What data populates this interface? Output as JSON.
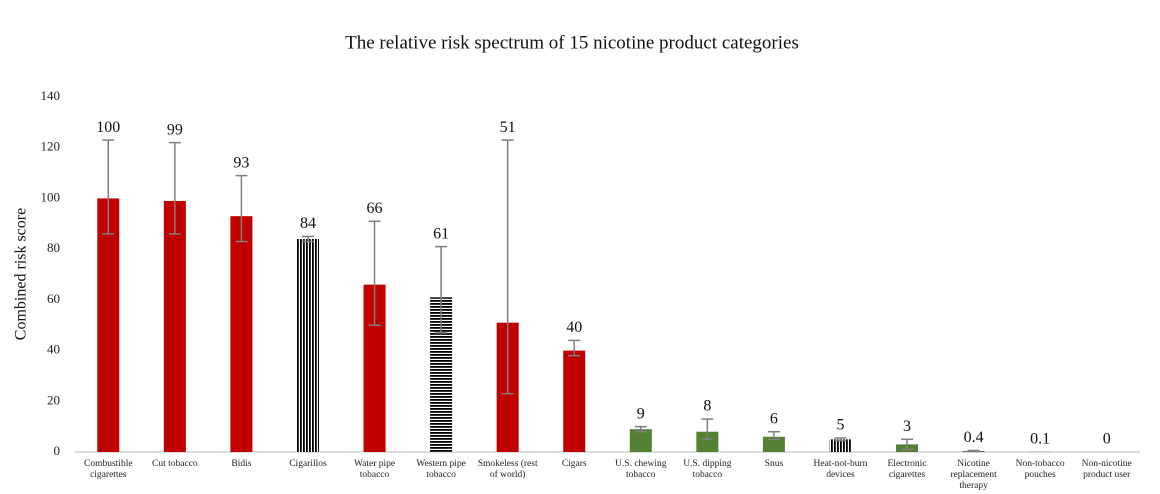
{
  "chart_data": {
    "type": "bar",
    "title": "The relative risk spectrum of 15 nicotine product categories",
    "y_label": "Combined risk score",
    "categories": [
      "Combustible cigarettes",
      "Cut tobacco",
      "Bidis",
      "Cigarillos",
      "Water pipe tobacco",
      "Western pipe tobacco",
      "Smokeless (rest of world)",
      "Cigars",
      "U.S. chewing tobacco",
      "U.S. dipping tobacco",
      "Snus",
      "Heat-not-burn devices",
      "Electronic cigarettes",
      "Nicotine replacement therapy",
      "Non-tobacco pouches",
      "Non-nicotine product user"
    ],
    "values": [
      100,
      99,
      93,
      84,
      66,
      61,
      51,
      40,
      9,
      8,
      6,
      5,
      3,
      0.4,
      0.1,
      0
    ],
    "errors": [
      [
        86,
        123
      ],
      [
        86,
        122
      ],
      [
        83,
        109
      ],
      [
        83,
        85
      ],
      [
        50,
        91
      ],
      [
        47,
        81
      ],
      [
        23,
        123
      ],
      [
        38,
        44
      ],
      [
        8,
        10
      ],
      [
        5,
        13
      ],
      [
        5,
        8
      ],
      [
        4.5,
        5.5
      ],
      [
        1,
        5
      ],
      [
        0.2,
        0.6
      ],
      null,
      null
    ],
    "colors": [
      "#c00000",
      "#c00000",
      "#c00000",
      "#c00000",
      "#c00000",
      "#c00000",
      "#c00000",
      "#c00000",
      "#548235",
      "#548235",
      "#548235",
      "#8fbc6a",
      "#548235",
      "#548235",
      "#548235",
      "#548235"
    ],
    "patterns": [
      null,
      null,
      null,
      "vertical-stripes",
      null,
      "horizontal-stripes",
      null,
      null,
      null,
      null,
      null,
      "vertical-stripes",
      null,
      null,
      null,
      null
    ],
    "ylim": [
      0,
      140
    ],
    "yticks": [
      0,
      20,
      40,
      60,
      80,
      100,
      120,
      140
    ],
    "grid": false
  }
}
